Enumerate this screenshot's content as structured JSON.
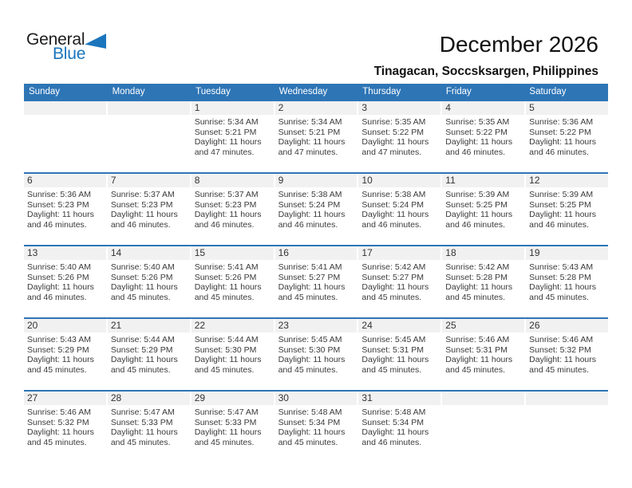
{
  "logo": {
    "part1": "General",
    "part2": "Blue"
  },
  "header": {
    "title": "December 2026",
    "subtitle": "Tinagacan, Soccsksargen, Philippines"
  },
  "colors": {
    "header_blue": "#2E75B6",
    "logo_blue": "#1B75BC",
    "band_gray": "#F1F1F1",
    "text_dark": "#333333"
  },
  "calendar": {
    "day_headers": [
      "Sunday",
      "Monday",
      "Tuesday",
      "Wednesday",
      "Thursday",
      "Friday",
      "Saturday"
    ],
    "weeks": [
      [
        {
          "day": "",
          "lines": []
        },
        {
          "day": "",
          "lines": []
        },
        {
          "day": "1",
          "lines": [
            "Sunrise: 5:34 AM",
            "Sunset: 5:21 PM",
            "Daylight: 11 hours",
            "and 47 minutes."
          ]
        },
        {
          "day": "2",
          "lines": [
            "Sunrise: 5:34 AM",
            "Sunset: 5:21 PM",
            "Daylight: 11 hours",
            "and 47 minutes."
          ]
        },
        {
          "day": "3",
          "lines": [
            "Sunrise: 5:35 AM",
            "Sunset: 5:22 PM",
            "Daylight: 11 hours",
            "and 47 minutes."
          ]
        },
        {
          "day": "4",
          "lines": [
            "Sunrise: 5:35 AM",
            "Sunset: 5:22 PM",
            "Daylight: 11 hours",
            "and 46 minutes."
          ]
        },
        {
          "day": "5",
          "lines": [
            "Sunrise: 5:36 AM",
            "Sunset: 5:22 PM",
            "Daylight: 11 hours",
            "and 46 minutes."
          ]
        }
      ],
      [
        {
          "day": "6",
          "lines": [
            "Sunrise: 5:36 AM",
            "Sunset: 5:23 PM",
            "Daylight: 11 hours",
            "and 46 minutes."
          ]
        },
        {
          "day": "7",
          "lines": [
            "Sunrise: 5:37 AM",
            "Sunset: 5:23 PM",
            "Daylight: 11 hours",
            "and 46 minutes."
          ]
        },
        {
          "day": "8",
          "lines": [
            "Sunrise: 5:37 AM",
            "Sunset: 5:23 PM",
            "Daylight: 11 hours",
            "and 46 minutes."
          ]
        },
        {
          "day": "9",
          "lines": [
            "Sunrise: 5:38 AM",
            "Sunset: 5:24 PM",
            "Daylight: 11 hours",
            "and 46 minutes."
          ]
        },
        {
          "day": "10",
          "lines": [
            "Sunrise: 5:38 AM",
            "Sunset: 5:24 PM",
            "Daylight: 11 hours",
            "and 46 minutes."
          ]
        },
        {
          "day": "11",
          "lines": [
            "Sunrise: 5:39 AM",
            "Sunset: 5:25 PM",
            "Daylight: 11 hours",
            "and 46 minutes."
          ]
        },
        {
          "day": "12",
          "lines": [
            "Sunrise: 5:39 AM",
            "Sunset: 5:25 PM",
            "Daylight: 11 hours",
            "and 46 minutes."
          ]
        }
      ],
      [
        {
          "day": "13",
          "lines": [
            "Sunrise: 5:40 AM",
            "Sunset: 5:26 PM",
            "Daylight: 11 hours",
            "and 46 minutes."
          ]
        },
        {
          "day": "14",
          "lines": [
            "Sunrise: 5:40 AM",
            "Sunset: 5:26 PM",
            "Daylight: 11 hours",
            "and 45 minutes."
          ]
        },
        {
          "day": "15",
          "lines": [
            "Sunrise: 5:41 AM",
            "Sunset: 5:26 PM",
            "Daylight: 11 hours",
            "and 45 minutes."
          ]
        },
        {
          "day": "16",
          "lines": [
            "Sunrise: 5:41 AM",
            "Sunset: 5:27 PM",
            "Daylight: 11 hours",
            "and 45 minutes."
          ]
        },
        {
          "day": "17",
          "lines": [
            "Sunrise: 5:42 AM",
            "Sunset: 5:27 PM",
            "Daylight: 11 hours",
            "and 45 minutes."
          ]
        },
        {
          "day": "18",
          "lines": [
            "Sunrise: 5:42 AM",
            "Sunset: 5:28 PM",
            "Daylight: 11 hours",
            "and 45 minutes."
          ]
        },
        {
          "day": "19",
          "lines": [
            "Sunrise: 5:43 AM",
            "Sunset: 5:28 PM",
            "Daylight: 11 hours",
            "and 45 minutes."
          ]
        }
      ],
      [
        {
          "day": "20",
          "lines": [
            "Sunrise: 5:43 AM",
            "Sunset: 5:29 PM",
            "Daylight: 11 hours",
            "and 45 minutes."
          ]
        },
        {
          "day": "21",
          "lines": [
            "Sunrise: 5:44 AM",
            "Sunset: 5:29 PM",
            "Daylight: 11 hours",
            "and 45 minutes."
          ]
        },
        {
          "day": "22",
          "lines": [
            "Sunrise: 5:44 AM",
            "Sunset: 5:30 PM",
            "Daylight: 11 hours",
            "and 45 minutes."
          ]
        },
        {
          "day": "23",
          "lines": [
            "Sunrise: 5:45 AM",
            "Sunset: 5:30 PM",
            "Daylight: 11 hours",
            "and 45 minutes."
          ]
        },
        {
          "day": "24",
          "lines": [
            "Sunrise: 5:45 AM",
            "Sunset: 5:31 PM",
            "Daylight: 11 hours",
            "and 45 minutes."
          ]
        },
        {
          "day": "25",
          "lines": [
            "Sunrise: 5:46 AM",
            "Sunset: 5:31 PM",
            "Daylight: 11 hours",
            "and 45 minutes."
          ]
        },
        {
          "day": "26",
          "lines": [
            "Sunrise: 5:46 AM",
            "Sunset: 5:32 PM",
            "Daylight: 11 hours",
            "and 45 minutes."
          ]
        }
      ],
      [
        {
          "day": "27",
          "lines": [
            "Sunrise: 5:46 AM",
            "Sunset: 5:32 PM",
            "Daylight: 11 hours",
            "and 45 minutes."
          ]
        },
        {
          "day": "28",
          "lines": [
            "Sunrise: 5:47 AM",
            "Sunset: 5:33 PM",
            "Daylight: 11 hours",
            "and 45 minutes."
          ]
        },
        {
          "day": "29",
          "lines": [
            "Sunrise: 5:47 AM",
            "Sunset: 5:33 PM",
            "Daylight: 11 hours",
            "and 45 minutes."
          ]
        },
        {
          "day": "30",
          "lines": [
            "Sunrise: 5:48 AM",
            "Sunset: 5:34 PM",
            "Daylight: 11 hours",
            "and 45 minutes."
          ]
        },
        {
          "day": "31",
          "lines": [
            "Sunrise: 5:48 AM",
            "Sunset: 5:34 PM",
            "Daylight: 11 hours",
            "and 46 minutes."
          ]
        },
        {
          "day": "",
          "lines": []
        },
        {
          "day": "",
          "lines": []
        }
      ]
    ]
  }
}
